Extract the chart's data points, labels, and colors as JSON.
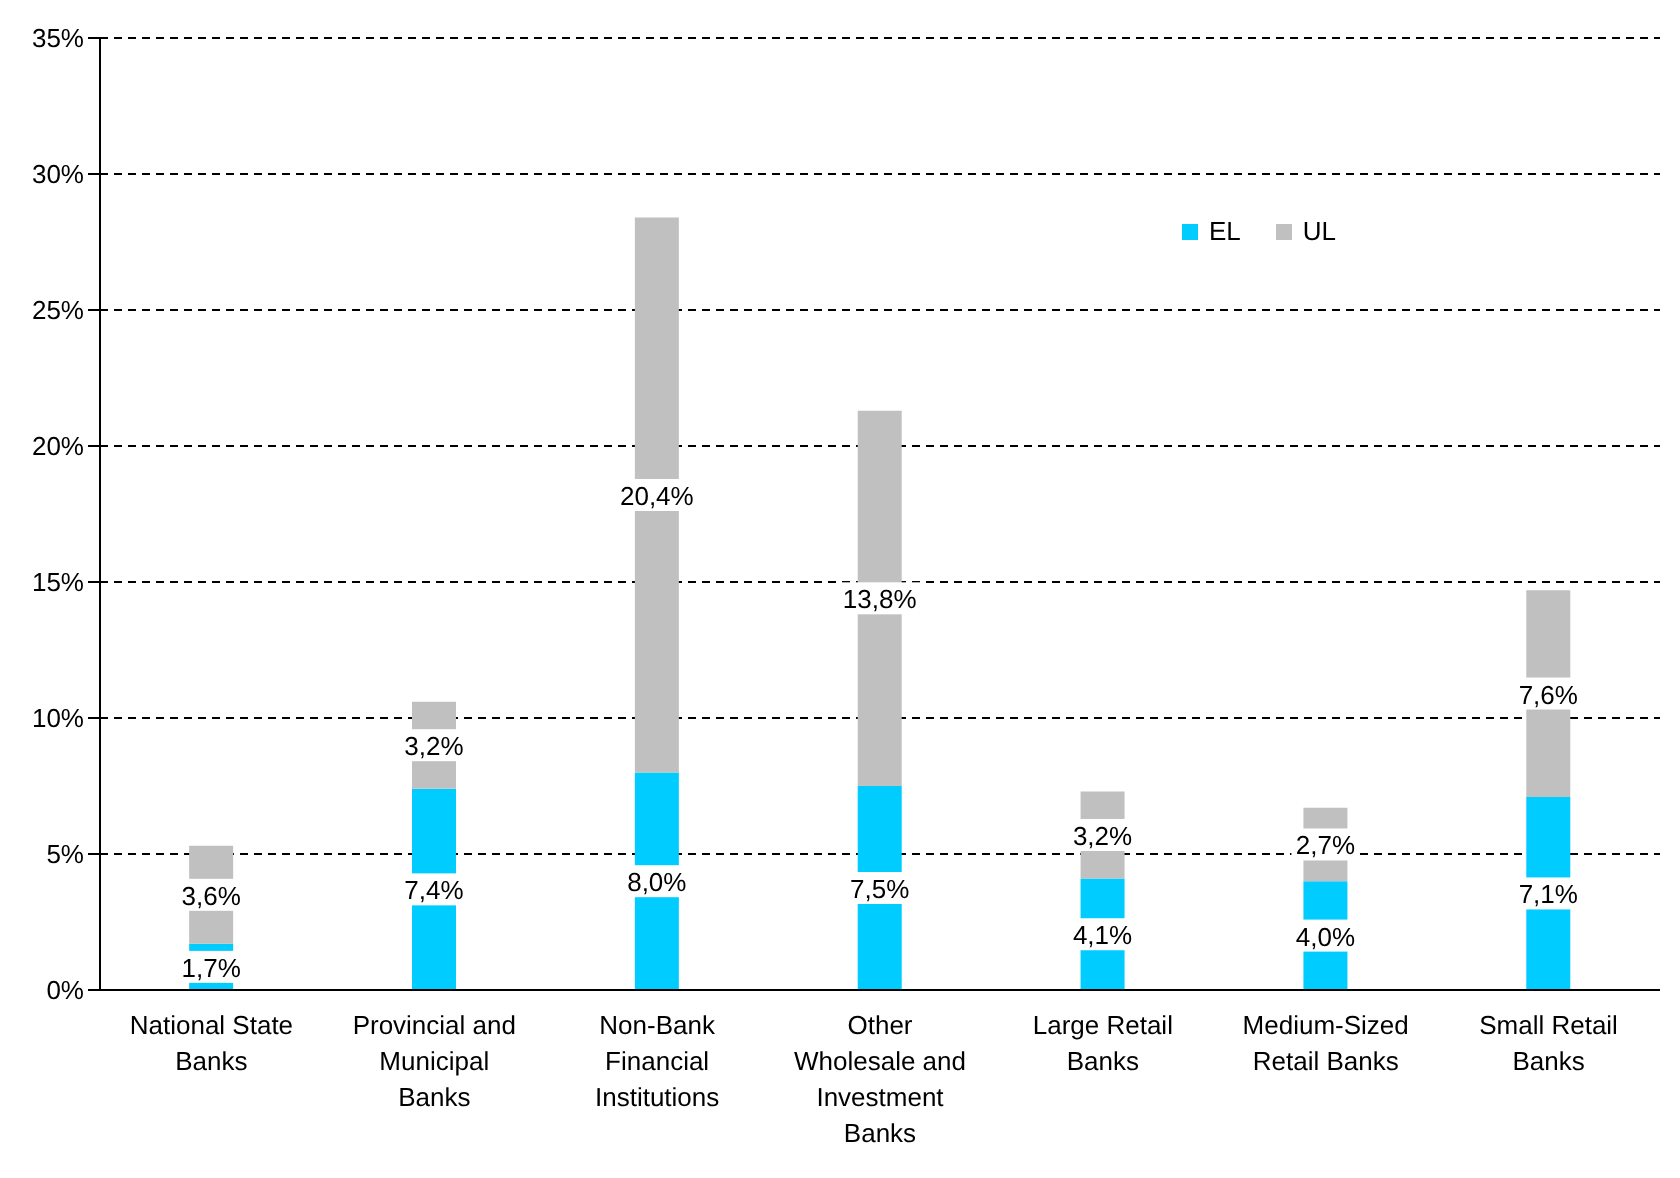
{
  "chart_data": {
    "type": "bar",
    "stacked": true,
    "categories": [
      "National State Banks",
      "Provincial and Municipal Banks",
      "Non-Bank Financial Institutions",
      "Other Wholesale and Investment Banks",
      "Large Retail Banks",
      "Medium-Sized Retail Banks",
      "Small Retail Banks"
    ],
    "series": [
      {
        "name": "EL",
        "color": "#00ccff",
        "values": [
          1.7,
          7.4,
          8.0,
          7.5,
          4.1,
          4.0,
          7.1
        ],
        "value_labels": [
          "1,7%",
          "7,4%",
          "8,0%",
          "7,5%",
          "4,1%",
          "4,0%",
          "7,1%"
        ]
      },
      {
        "name": "UL",
        "color": "#c0c0c0",
        "values": [
          3.6,
          3.2,
          20.4,
          13.8,
          3.2,
          2.7,
          7.6
        ],
        "value_labels": [
          "3,6%",
          "3,2%",
          "20,4%",
          "13,8%",
          "3,2%",
          "2,7%",
          "7,6%"
        ]
      }
    ],
    "ylim": [
      0,
      35
    ],
    "yticks": [
      {
        "value": 0,
        "label": "0%"
      },
      {
        "value": 5,
        "label": "5%"
      },
      {
        "value": 10,
        "label": "10%"
      },
      {
        "value": 15,
        "label": "15%"
      },
      {
        "value": 20,
        "label": "20%"
      },
      {
        "value": 25,
        "label": "25%"
      },
      {
        "value": 30,
        "label": "30%"
      },
      {
        "value": 35,
        "label": "35%"
      }
    ],
    "grid": "y",
    "line_style": "dashed",
    "legend": "top right"
  }
}
